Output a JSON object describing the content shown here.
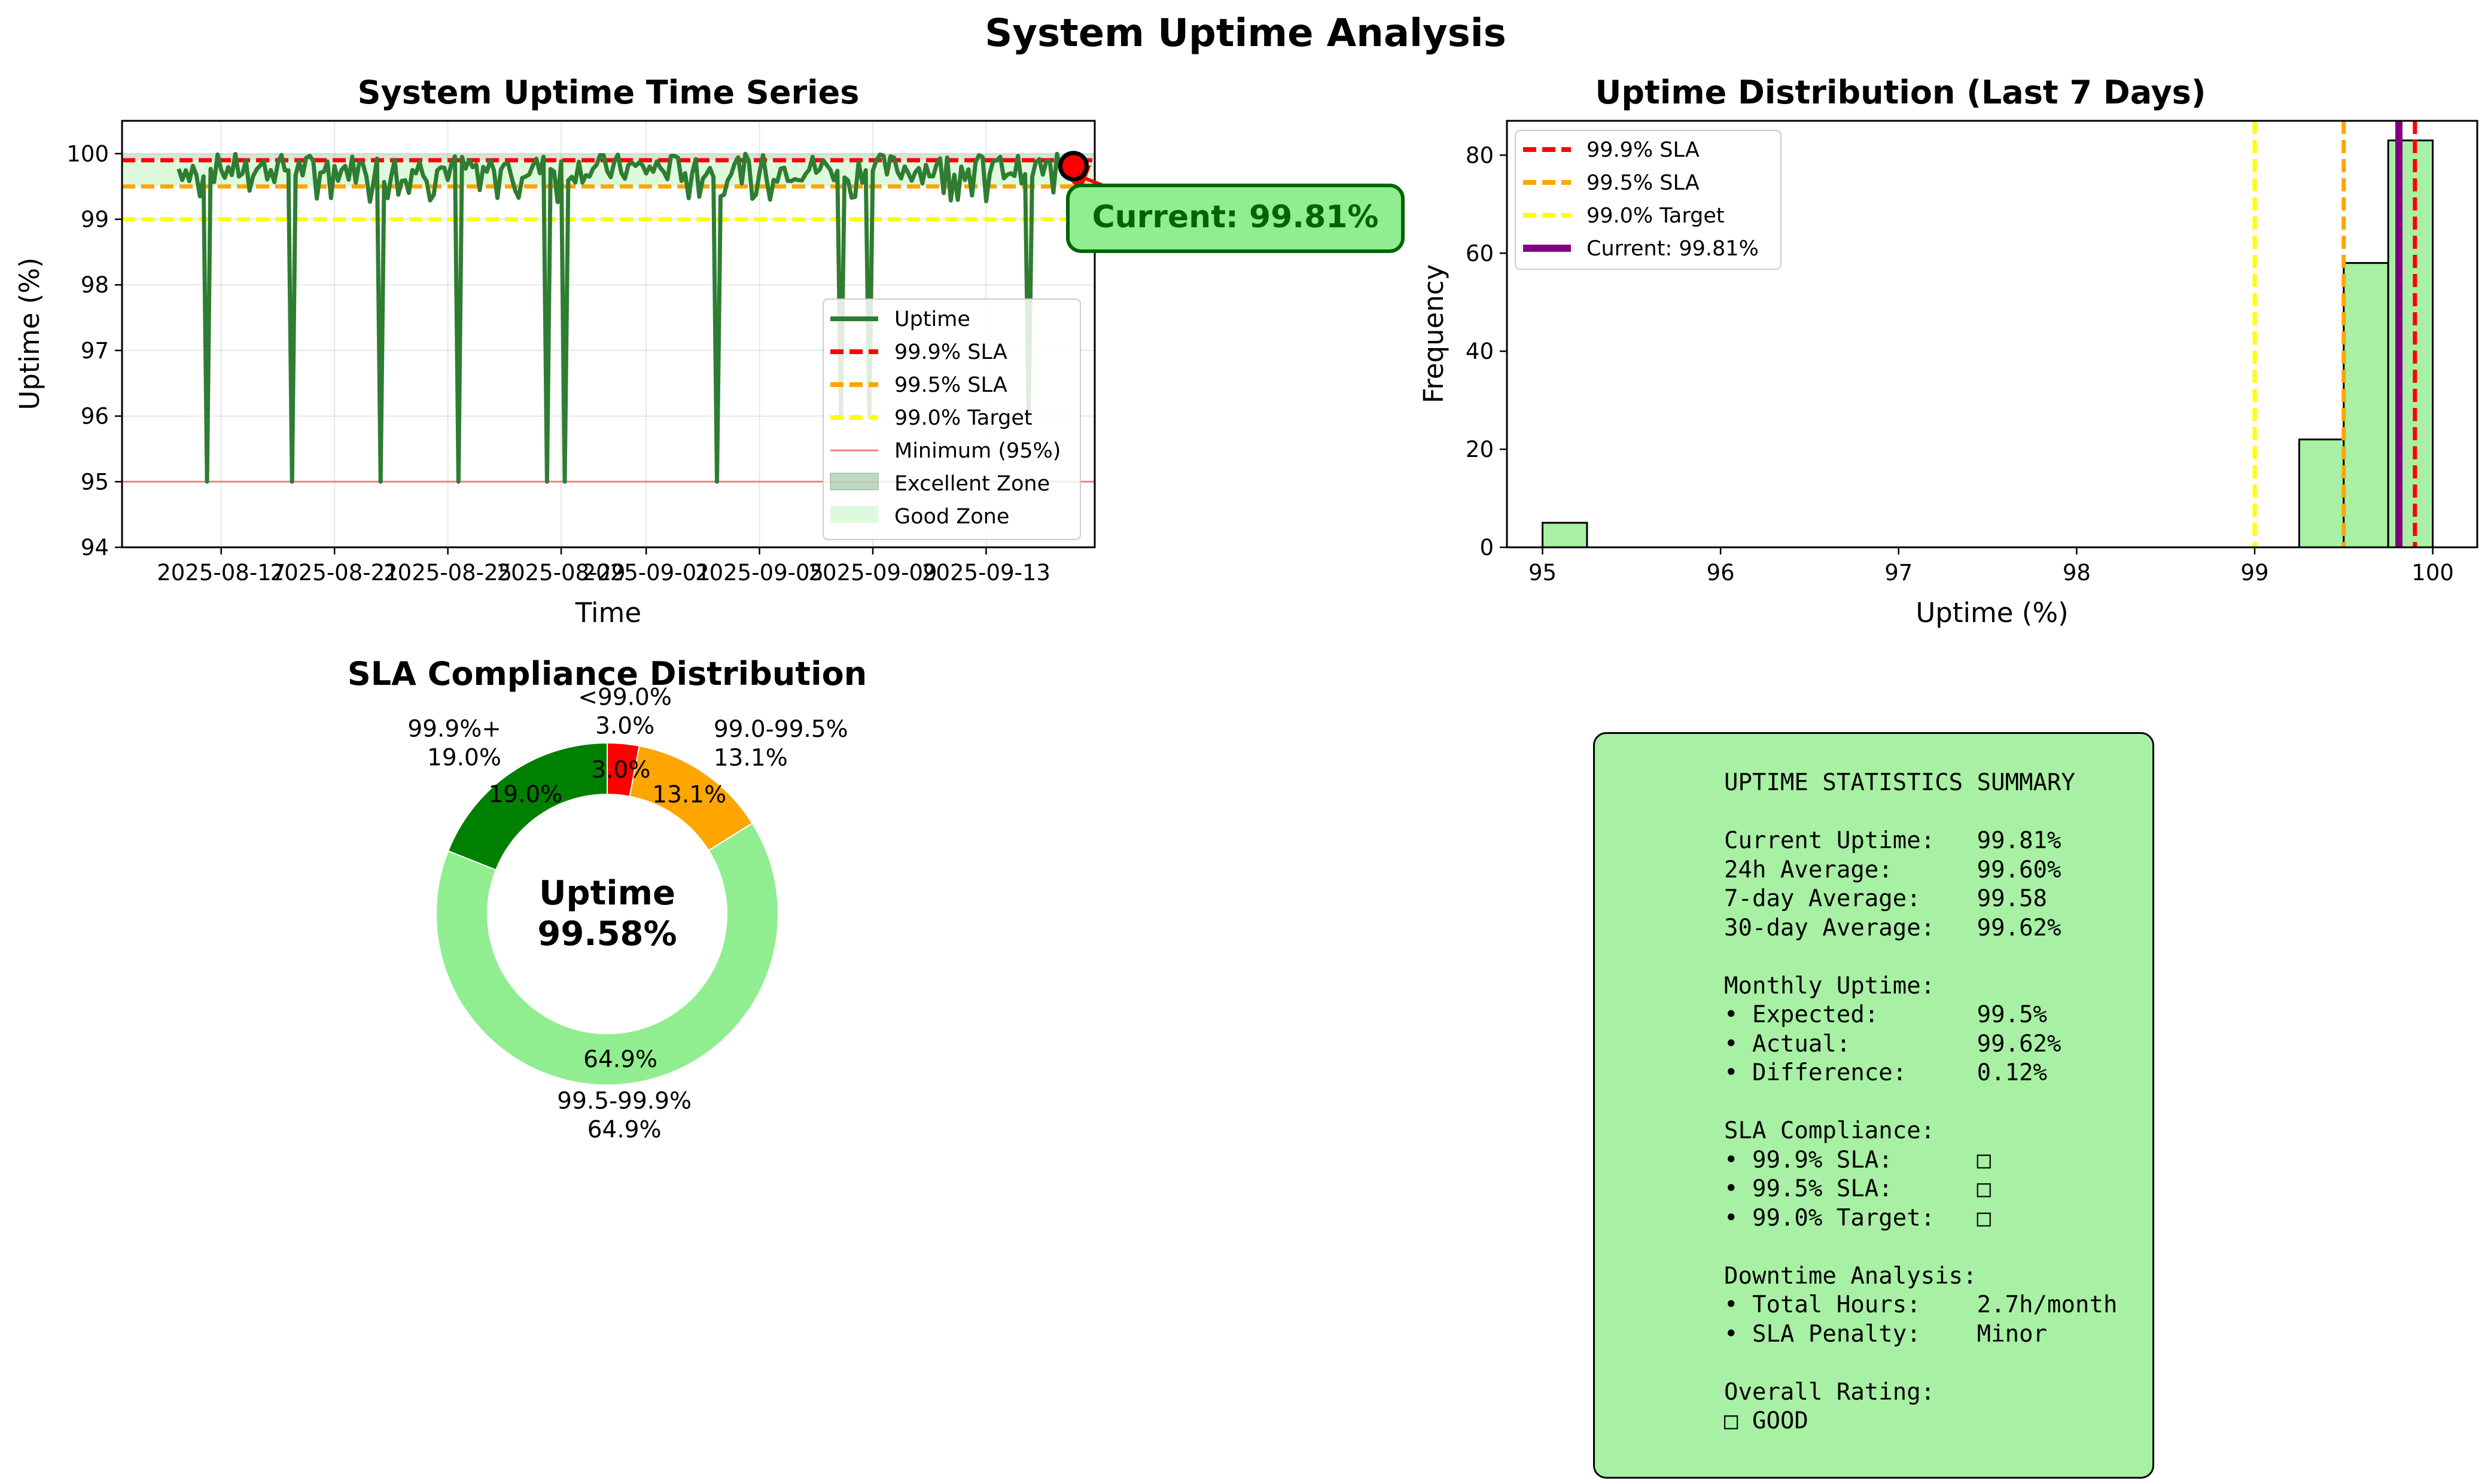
{
  "figure": {
    "title": "System Uptime Analysis"
  },
  "timeseries": {
    "title": "System Uptime Time Series",
    "xlabel": "Time",
    "ylabel": "Uptime (%)",
    "annotation": "Current: 99.81%",
    "legend": [
      "Uptime",
      "99.9% SLA",
      "99.5% SLA",
      "99.0% Target",
      "Minimum (95%)",
      "Excellent Zone",
      "Good Zone"
    ]
  },
  "histogram": {
    "title": "Uptime Distribution (Last 7 Days)",
    "xlabel": "Uptime (%)",
    "ylabel": "Frequency",
    "legend": [
      "99.9% SLA",
      "99.5% SLA",
      "99.0% Target",
      "Current: 99.81%"
    ]
  },
  "donut": {
    "title": "SLA Compliance Distribution",
    "center_label": "Uptime",
    "center_value": "99.58%"
  },
  "summary": {
    "lines": [
      "UPTIME STATISTICS SUMMARY",
      "",
      "Current Uptime:   99.81%",
      "24h Average:      99.60%",
      "7-day Average:    99.58",
      "30-day Average:   99.62%",
      "",
      "Monthly Uptime:",
      "• Expected:       99.5%",
      "• Actual:         99.62%",
      "• Difference:     0.12%",
      "",
      "SLA Compliance:",
      "• 99.9% SLA:      □",
      "• 99.5% SLA:      □",
      "• 99.0% Target:   □",
      "",
      "Downtime Analysis:",
      "• Total Hours:    2.7h/month",
      "• SLA Penalty:    Minor",
      "",
      "Overall Rating:",
      "□ GOOD"
    ]
  },
  "colors": {
    "uptime": "#2e7d32",
    "sla999": "#ff0000",
    "sla995": "#ffa500",
    "target990": "#ffff00",
    "minimum": "#f08080",
    "current": "#800080",
    "hist_fill": "#a8f0a4",
    "donut": [
      "#008000",
      "#90ee90",
      "#ffa500",
      "#ff0000"
    ],
    "summary_bg": "#a8f0a4",
    "annotation_bg": "#90ee90",
    "annotation_text": "#006400"
  },
  "chart_data": [
    {
      "type": "line",
      "title": "System Uptime Time Series",
      "xlabel": "Time",
      "ylabel": "Uptime (%)",
      "x_ticks": [
        "2025-08-17",
        "2025-08-21",
        "2025-08-25",
        "2025-08-29",
        "2025-09-01",
        "2025-09-05",
        "2025-09-09",
        "2025-09-13"
      ],
      "xlim": [
        "2025-08-13T12:00",
        "2025-09-16T20:00"
      ],
      "ylim": [
        94,
        100.5
      ],
      "y_ticks": [
        94,
        95,
        96,
        97,
        98,
        99,
        100
      ],
      "grid": true,
      "legend_position": "lower right",
      "series": [
        {
          "name": "Uptime",
          "x_start": "2025-08-15T12:00",
          "x_end": "2025-09-16T02:00",
          "baseline_range": [
            99.3,
            100.0
          ],
          "dips": [
            {
              "date": "2025-08-16T12:00",
              "value": 95.0
            },
            {
              "date": "2025-08-19T12:00",
              "value": 95.0
            },
            {
              "date": "2025-08-22T16:00",
              "value": 95.0
            },
            {
              "date": "2025-08-25T10:00",
              "value": 95.0
            },
            {
              "date": "2025-08-28T12:00",
              "value": 95.0
            },
            {
              "date": "2025-08-29T02:00",
              "value": 95.0
            },
            {
              "date": "2025-09-03T12:00",
              "value": 95.0
            },
            {
              "date": "2025-09-07T22:00",
              "value": 96.0
            },
            {
              "date": "2025-09-08T22:00",
              "value": 96.0
            },
            {
              "date": "2025-09-14T12:00",
              "value": 96.0
            }
          ]
        }
      ],
      "reference_lines": [
        {
          "name": "99.9% SLA",
          "y": 99.9
        },
        {
          "name": "99.5% SLA",
          "y": 99.5
        },
        {
          "name": "99.0% Target",
          "y": 99.0
        },
        {
          "name": "Minimum (95%)",
          "y": 95.0
        }
      ],
      "zones": [
        {
          "name": "Excellent Zone",
          "y_range": [
            99.9,
            100
          ]
        },
        {
          "name": "Good Zone",
          "y_range": [
            99.5,
            99.9
          ]
        }
      ],
      "current_point": {
        "date": "2025-09-16T02:00",
        "value": 99.81,
        "label": "Current: 99.81%"
      }
    },
    {
      "type": "bar",
      "title": "Uptime Distribution (Last 7 Days)",
      "xlabel": "Uptime (%)",
      "ylabel": "Frequency",
      "bin_width": 0.25,
      "bins": [
        {
          "x0": 95.0,
          "x1": 95.25,
          "count": 5
        },
        {
          "x0": 99.25,
          "x1": 99.5,
          "count": 22
        },
        {
          "x0": 99.5,
          "x1": 99.75,
          "count": 58
        },
        {
          "x0": 99.75,
          "x1": 100.0,
          "count": 83
        }
      ],
      "xlim": [
        94.8,
        100.25
      ],
      "ylim": [
        0,
        87
      ],
      "x_ticks": [
        95,
        96,
        97,
        98,
        99,
        100
      ],
      "y_ticks": [
        0,
        20,
        40,
        60,
        80
      ],
      "vlines": [
        {
          "name": "99.9% SLA",
          "x": 99.9
        },
        {
          "name": "99.5% SLA",
          "x": 99.5
        },
        {
          "name": "99.0% Target",
          "x": 99.0
        },
        {
          "name": "Current: 99.81%",
          "x": 99.81
        }
      ],
      "legend_position": "upper left"
    },
    {
      "type": "pie",
      "title": "SLA Compliance Distribution",
      "slices": [
        {
          "label": "99.9%+",
          "value": 19.0,
          "pct": "19.0%"
        },
        {
          "label": "99.5-99.9%",
          "value": 64.9,
          "pct": "64.9%"
        },
        {
          "label": "99.0-99.5%",
          "value": 13.1,
          "pct": "13.1%"
        },
        {
          "label": "<99.0%",
          "value": 3.0,
          "pct": "3.0%"
        }
      ],
      "donut": true,
      "center_text": [
        "Uptime",
        "99.58%"
      ]
    }
  ]
}
